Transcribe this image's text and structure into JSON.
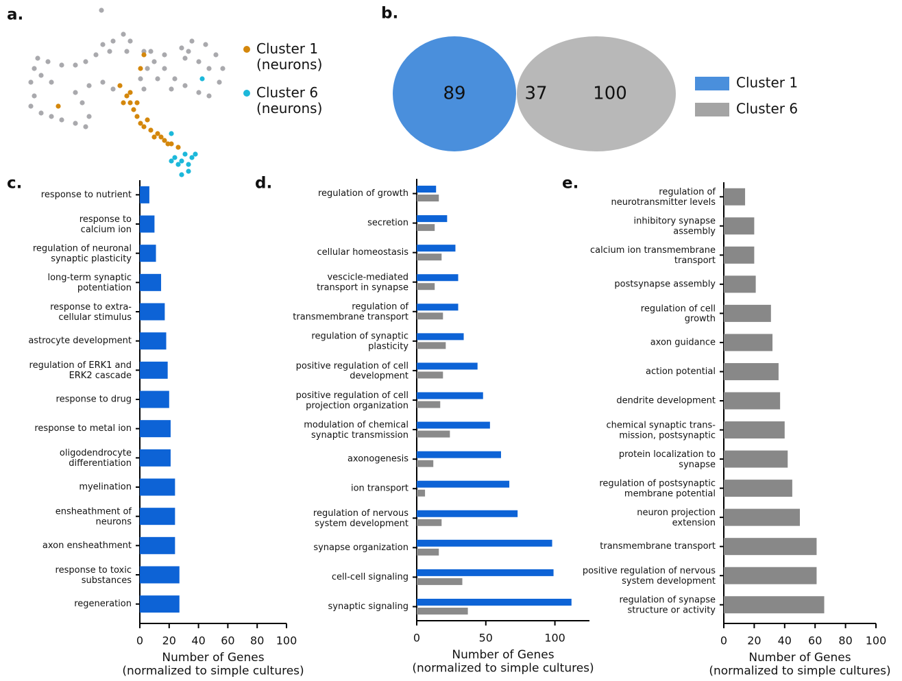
{
  "chart_data": [
    {
      "type": "scatter",
      "label": "a.",
      "xlim": [
        40,
        330
      ],
      "ylim": [
        260,
        10
      ],
      "series": [
        {
          "color": "#a9a9ad",
          "x": [
            148,
            55,
            70,
            90,
            110,
            125,
            140,
            150,
            165,
            180,
            190,
            185,
            160,
            50,
            45,
            50,
            45,
            60,
            75,
            90,
            110,
            125,
            130,
            120,
            110,
            130,
            150,
            165,
            75,
            60,
            215,
            225,
            240,
            255,
            270,
            290,
            305,
            320,
            325,
            315,
            300,
            280,
            265,
            270,
            290,
            305,
            275,
            250,
            230,
            205,
            210,
            240,
            220,
            210
          ],
          "y": [
            15,
            85,
            90,
            95,
            95,
            90,
            80,
            65,
            60,
            50,
            60,
            75,
            75,
            100,
            120,
            140,
            155,
            165,
            170,
            175,
            180,
            185,
            170,
            150,
            135,
            125,
            120,
            130,
            120,
            110,
            100,
            90,
            100,
            115,
            125,
            135,
            140,
            120,
            100,
            80,
            65,
            60,
            70,
            85,
            90,
            100,
            75,
            130,
            115,
            115,
            130,
            80,
            75,
            75
          ]
        },
        {
          "name": "Cluster 1\n(neurons)",
          "color": "#d4870c",
          "x": [
            210,
            175,
            185,
            190,
            195,
            200,
            205,
            210,
            220,
            230,
            240,
            250,
            260,
            190,
            180,
            200,
            215,
            225,
            235,
            245,
            205,
            85
          ],
          "y": [
            80,
            125,
            140,
            150,
            160,
            170,
            180,
            185,
            190,
            195,
            205,
            210,
            215,
            135,
            150,
            150,
            175,
            200,
            200,
            210,
            100,
            155
          ]
        },
        {
          "name": "Cluster 6\n(neurons)",
          "color": "#1cb8da",
          "x": [
            295,
            250,
            255,
            265,
            275,
            280,
            270,
            260,
            265,
            285,
            250,
            275
          ],
          "y": [
            115,
            195,
            230,
            235,
            240,
            230,
            225,
            240,
            255,
            225,
            235,
            250
          ]
        }
      ]
    },
    {
      "type": "venn",
      "label": "b.",
      "sets": [
        {
          "name": "Cluster 1",
          "color": "#4a8fdc"
        },
        {
          "name": "Cluster 6",
          "color": "#a4a4a4"
        }
      ],
      "values": [
        89,
        37,
        100
      ]
    },
    {
      "type": "hbar",
      "label": "c.",
      "xlim": [
        0,
        100
      ],
      "xticks": [
        0,
        20,
        40,
        60,
        80,
        100
      ],
      "xlabel": "Number of Genes\n(normalized to simple cultures)",
      "categories": [
        "response to nutrient",
        "response to\ncalcium ion",
        "regulation of neuronal\nsynaptic plasticity",
        "long-term synaptic\npotentiation",
        "response to extra-\ncellular stimulus",
        "astrocyte development",
        "regulation of ERK1 and\nERK2 cascade",
        "response to drug",
        "response to metal ion",
        "oligodendrocyte\ndifferentiation",
        "myelination",
        "ensheathment of\nneurons",
        "axon ensheathment",
        "response to toxic\nsubstances",
        "regeneration"
      ],
      "series": [
        {
          "color": "#0d63d6",
          "values": [
            6.5,
            10,
            11,
            14.5,
            17,
            18,
            19,
            20,
            21,
            21,
            24,
            24,
            24,
            27,
            27
          ]
        }
      ]
    },
    {
      "type": "hbar",
      "label": "d.",
      "xlim": [
        0,
        125
      ],
      "xticks": [
        0,
        50,
        100
      ],
      "xlabel": "Number of Genes\n(normalized to simple cultures)",
      "categories": [
        "regulation of growth",
        "secretion",
        "cellular homeostasis",
        "vescicle-mediated\ntransport in synapse",
        "regulation of\ntransmembrane transport",
        "regulation of synaptic\nplasticity",
        "positive regulation of cell\ndevelopment",
        "positive regulation of cell\nprojection organization",
        "modulation of chemical\nsynaptic transmission",
        "axonogenesis",
        "ion transport",
        "regulation of nervous\nsystem development",
        "synapse organization",
        "cell-cell signaling",
        "synaptic signaling"
      ],
      "series": [
        {
          "color": "#0d63d6",
          "values": [
            14,
            22,
            28,
            30,
            30,
            34,
            44,
            48,
            53,
            61,
            67,
            73,
            98,
            99,
            112
          ]
        },
        {
          "color": "#8a8a8a",
          "values": [
            16,
            13,
            18,
            13,
            19,
            21,
            19,
            17,
            24,
            12,
            6,
            18,
            16,
            33,
            37
          ]
        }
      ]
    },
    {
      "type": "hbar",
      "label": "e.",
      "xlim": [
        0,
        100
      ],
      "xticks": [
        0,
        20,
        40,
        60,
        80,
        100
      ],
      "xlabel": "Number of Genes\n(normalized to simple cultures)",
      "categories": [
        "regulation of\nneurotransmitter levels",
        "inhibitory synapse\nassembly",
        "calcium ion transmembrane\ntransport",
        "postsynapse assembly",
        "regulation of cell\ngrowth",
        "axon guidance",
        "action potential",
        "dendrite development",
        "chemical synaptic trans-\nmission, postsynaptic",
        "protein localization to\nsynapse",
        "regulation of postsynaptic\nmembrane potential",
        "neuron projection\nextension",
        "transmembrane transport",
        "positive regulation of nervous\nsystem development",
        "regulation of synapse\nstructure or activity"
      ],
      "series": [
        {
          "color": "#888888",
          "values": [
            14,
            20,
            20,
            21,
            31,
            32,
            36,
            37,
            40,
            42,
            45,
            50,
            61,
            61,
            66
          ]
        }
      ]
    }
  ]
}
